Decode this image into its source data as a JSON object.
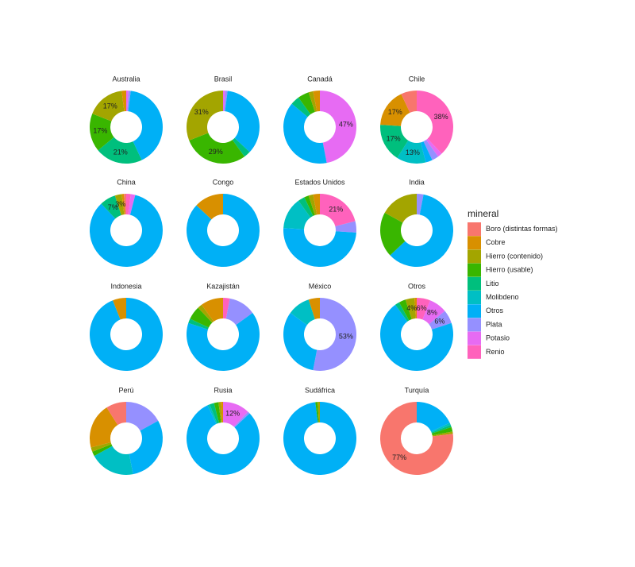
{
  "chart_data": {
    "type": "donut",
    "legend_title": "mineral",
    "categories": [
      "Boro (distintas formas)",
      "Cobre",
      "Hierro (contenido)",
      "Hierro (usable)",
      "Litio",
      "Molibdeno",
      "Otros",
      "Plata",
      "Potasio",
      "Renio"
    ],
    "colors": [
      "#F8766D",
      "#D89000",
      "#A3A500",
      "#39B600",
      "#00BF7D",
      "#00BFC4",
      "#00B0F6",
      "#9590FF",
      "#E76BF3",
      "#FF62BC"
    ],
    "facets": [
      {
        "title": "Australia",
        "values": [
          0,
          2,
          17,
          17,
          21,
          0,
          41,
          1,
          1,
          0
        ],
        "value_labels": [
          null,
          null,
          "17%",
          "17%",
          "21%",
          null,
          null,
          null,
          null,
          null
        ]
      },
      {
        "title": "Brasil",
        "values": [
          0,
          0,
          31,
          29,
          3,
          0,
          35,
          1,
          1,
          0
        ],
        "value_labels": [
          null,
          null,
          "31%",
          "29%",
          null,
          null,
          null,
          null,
          null,
          null
        ]
      },
      {
        "title": "Canadá",
        "values": [
          0,
          3,
          2,
          5,
          4,
          0,
          39,
          0,
          47,
          0
        ],
        "value_labels": [
          null,
          null,
          null,
          null,
          null,
          null,
          null,
          null,
          "47%",
          null
        ]
      },
      {
        "title": "Chile",
        "values": [
          7,
          17,
          0,
          0,
          17,
          13,
          3,
          3,
          2,
          38
        ],
        "value_labels": [
          null,
          "17%",
          null,
          null,
          "17%",
          "13%",
          null,
          null,
          null,
          "38%"
        ]
      },
      {
        "title": "China",
        "values": [
          1,
          1,
          3,
          0,
          7,
          0,
          84,
          0,
          2,
          2
        ],
        "value_labels": [
          null,
          null,
          "3%",
          null,
          "7%",
          null,
          null,
          null,
          null,
          null
        ]
      },
      {
        "title": "Congo",
        "values": [
          0,
          13,
          0,
          0,
          0,
          0,
          87,
          0,
          0,
          0
        ],
        "value_labels": [
          null,
          null,
          null,
          null,
          null,
          null,
          null,
          null,
          null,
          null
        ]
      },
      {
        "title": "Estados Unidos",
        "values": [
          0,
          3,
          2,
          2,
          3,
          14,
          50,
          5,
          0,
          21
        ],
        "value_labels": [
          null,
          null,
          null,
          null,
          null,
          null,
          null,
          null,
          null,
          "21%"
        ]
      },
      {
        "title": "India",
        "values": [
          0,
          0,
          17,
          20,
          0,
          0,
          60,
          3,
          0,
          0
        ],
        "value_labels": [
          null,
          null,
          null,
          null,
          null,
          null,
          null,
          null,
          null,
          null
        ]
      },
      {
        "title": "Indonesia",
        "values": [
          0,
          6,
          0,
          0,
          0,
          0,
          94,
          0,
          0,
          0
        ],
        "value_labels": [
          null,
          null,
          null,
          null,
          null,
          null,
          null,
          null,
          null,
          null
        ]
      },
      {
        "title": "Kazajistán",
        "values": [
          0,
          10,
          2,
          6,
          2,
          0,
          65,
          12,
          0,
          3
        ],
        "value_labels": [
          null,
          null,
          null,
          null,
          null,
          null,
          null,
          null,
          null,
          null
        ]
      },
      {
        "title": "México",
        "values": [
          0,
          5,
          0,
          0,
          0,
          10,
          32,
          53,
          0,
          0
        ],
        "value_labels": [
          null,
          null,
          null,
          null,
          null,
          null,
          null,
          "53%",
          null,
          null
        ]
      },
      {
        "title": "Otros",
        "values": [
          0,
          1,
          4,
          3,
          2,
          0,
          70,
          6,
          8,
          6
        ],
        "value_labels": [
          null,
          null,
          "4%",
          null,
          null,
          null,
          null,
          "6%",
          "8%",
          "6%"
        ]
      },
      {
        "title": "Perú",
        "values": [
          9,
          20,
          2,
          2,
          0,
          20,
          30,
          17,
          0,
          0
        ],
        "value_labels": [
          null,
          null,
          null,
          null,
          null,
          null,
          null,
          null,
          null,
          null
        ]
      },
      {
        "title": "Rusia",
        "values": [
          0,
          1,
          1,
          2,
          2,
          1,
          80,
          1,
          12,
          0
        ],
        "value_labels": [
          null,
          null,
          null,
          null,
          null,
          null,
          null,
          null,
          "12%",
          null
        ]
      },
      {
        "title": "Sudáfrica",
        "values": [
          0,
          0,
          1,
          1,
          0,
          0,
          98,
          0,
          0,
          0
        ],
        "value_labels": [
          null,
          null,
          null,
          null,
          null,
          null,
          null,
          null,
          null,
          null
        ]
      },
      {
        "title": "Turquía",
        "values": [
          77,
          0,
          1,
          2,
          1,
          1,
          18,
          0,
          0,
          0
        ],
        "value_labels": [
          "77%",
          null,
          null,
          null,
          null,
          null,
          null,
          null,
          null,
          null
        ]
      }
    ]
  }
}
